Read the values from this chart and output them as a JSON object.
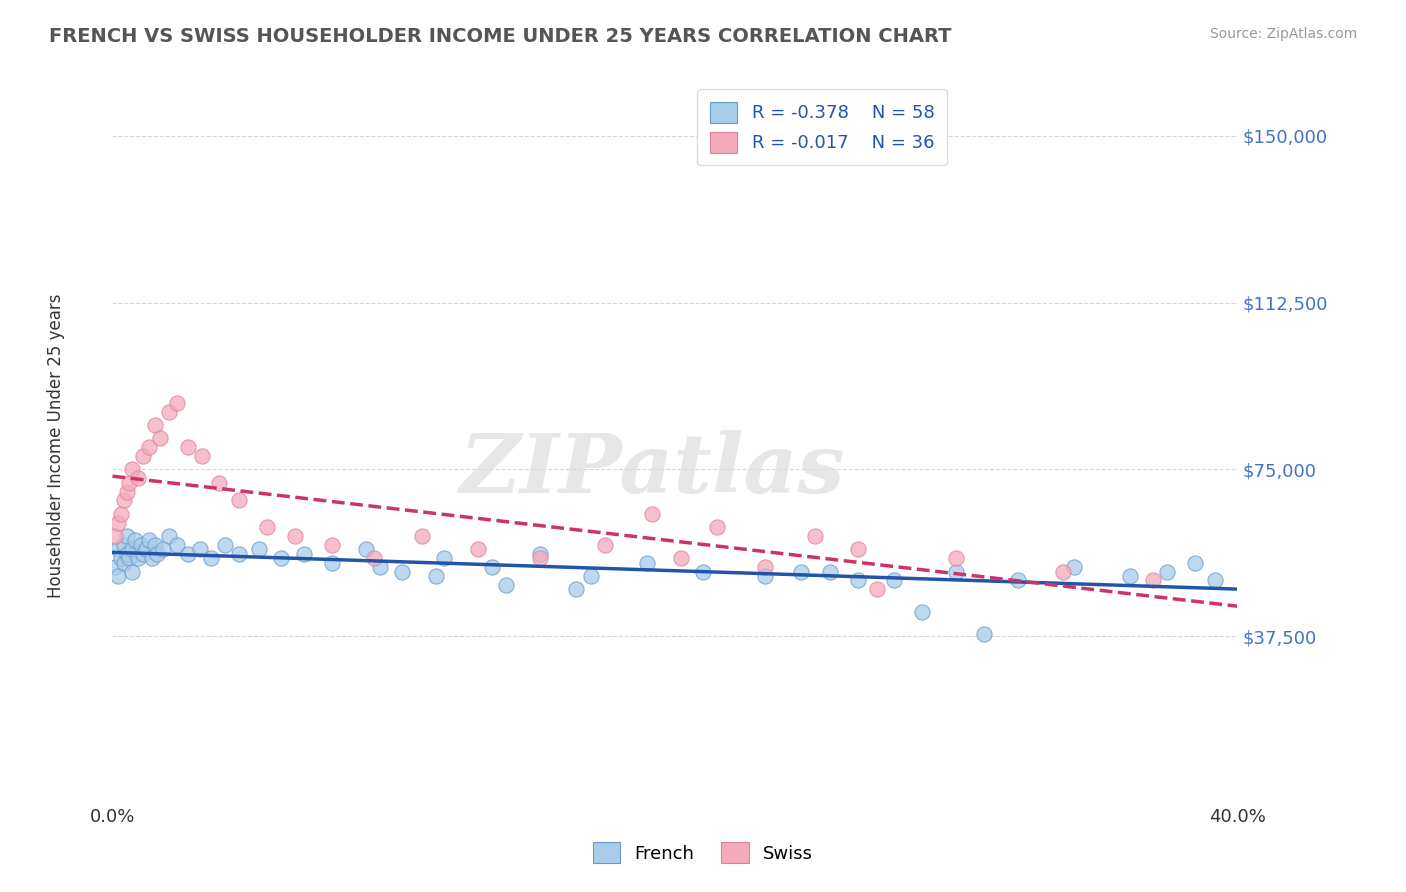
{
  "title": "FRENCH VS SWISS HOUSEHOLDER INCOME UNDER 25 YEARS CORRELATION CHART",
  "source": "Source: ZipAtlas.com",
  "ylabel": "Householder Income Under 25 years",
  "xlim": [
    0.0,
    0.4
  ],
  "ylim": [
    0,
    162500
  ],
  "yticks": [
    37500,
    75000,
    112500,
    150000
  ],
  "ytick_labels": [
    "$37,500",
    "$75,000",
    "$112,500",
    "$150,000"
  ],
  "xticks": [
    0.0,
    0.05,
    0.1,
    0.15,
    0.2,
    0.25,
    0.3,
    0.35,
    0.4
  ],
  "xtick_labels": [
    "0.0%",
    "",
    "",
    "",
    "",
    "",
    "",
    "",
    "40.0%"
  ],
  "legend_r_french": "R = -0.378",
  "legend_n_french": "N = 58",
  "legend_r_swiss": "R = -0.017",
  "legend_n_swiss": "N = 36",
  "french_color": "#A8CCEA",
  "swiss_color": "#F4AABB",
  "french_edge_color": "#6699CC",
  "swiss_edge_color": "#E080A0",
  "trendline_french_color": "#2255AA",
  "trendline_swiss_color": "#CC3366",
  "watermark": "ZIPatlas",
  "french_x": [
    0.001,
    0.002,
    0.002,
    0.003,
    0.004,
    0.004,
    0.005,
    0.005,
    0.006,
    0.007,
    0.007,
    0.008,
    0.009,
    0.01,
    0.011,
    0.012,
    0.013,
    0.014,
    0.015,
    0.016,
    0.018,
    0.02,
    0.023,
    0.027,
    0.031,
    0.035,
    0.04,
    0.045,
    0.052,
    0.06,
    0.068,
    0.078,
    0.09,
    0.103,
    0.118,
    0.135,
    0.152,
    0.17,
    0.19,
    0.21,
    0.232,
    0.255,
    0.278,
    0.3,
    0.322,
    0.342,
    0.362,
    0.375,
    0.385,
    0.392,
    0.095,
    0.115,
    0.14,
    0.165,
    0.245,
    0.265,
    0.288,
    0.31
  ],
  "french_y": [
    53000,
    57000,
    51000,
    55000,
    58000,
    54000,
    56000,
    60000,
    55000,
    57000,
    52000,
    59000,
    55000,
    58000,
    56000,
    57000,
    59000,
    55000,
    58000,
    56000,
    57000,
    60000,
    58000,
    56000,
    57000,
    55000,
    58000,
    56000,
    57000,
    55000,
    56000,
    54000,
    57000,
    52000,
    55000,
    53000,
    56000,
    51000,
    54000,
    52000,
    51000,
    52000,
    50000,
    52000,
    50000,
    53000,
    51000,
    52000,
    54000,
    50000,
    53000,
    51000,
    49000,
    48000,
    52000,
    50000,
    43000,
    38000
  ],
  "swiss_x": [
    0.001,
    0.002,
    0.003,
    0.004,
    0.005,
    0.006,
    0.007,
    0.009,
    0.011,
    0.013,
    0.015,
    0.017,
    0.02,
    0.023,
    0.027,
    0.032,
    0.038,
    0.045,
    0.055,
    0.065,
    0.078,
    0.093,
    0.11,
    0.13,
    0.152,
    0.175,
    0.202,
    0.232,
    0.265,
    0.3,
    0.338,
    0.37,
    0.192,
    0.215,
    0.25,
    0.272
  ],
  "swiss_y": [
    60000,
    63000,
    65000,
    68000,
    70000,
    72000,
    75000,
    73000,
    78000,
    80000,
    85000,
    82000,
    88000,
    90000,
    80000,
    78000,
    72000,
    68000,
    62000,
    60000,
    58000,
    55000,
    60000,
    57000,
    55000,
    58000,
    55000,
    53000,
    57000,
    55000,
    52000,
    50000,
    65000,
    62000,
    60000,
    48000
  ]
}
